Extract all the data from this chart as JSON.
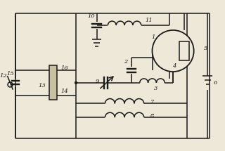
{
  "bg_color": "#ede8d8",
  "line_color": "#1a1a1a",
  "line_width": 1.1,
  "fig_width": 3.2,
  "fig_height": 2.15,
  "dpi": 100
}
